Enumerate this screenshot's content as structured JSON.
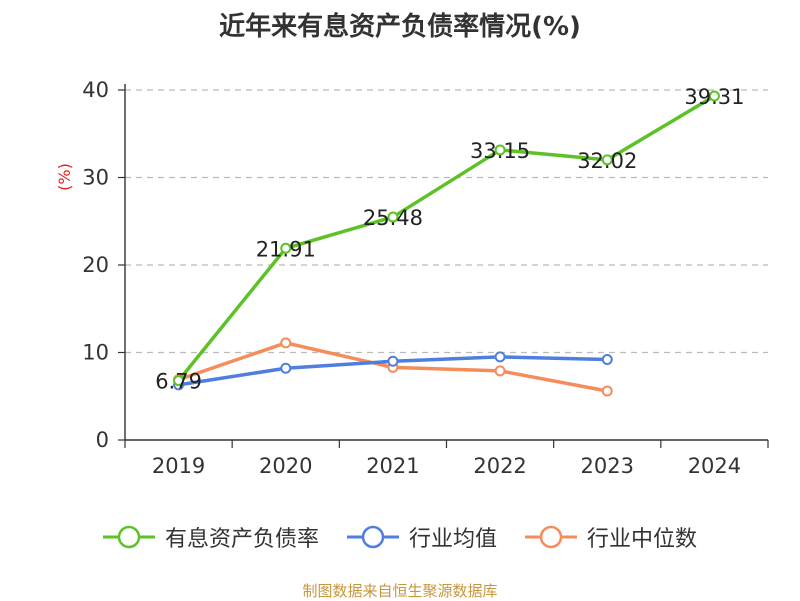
{
  "chart_data": {
    "type": "line",
    "title": "近年来有息资产负债率情况(%)",
    "ylabel": "(%)",
    "categories": [
      "2019",
      "2020",
      "2021",
      "2022",
      "2023",
      "2024"
    ],
    "y_ticks": [
      "0",
      "10",
      "20",
      "30",
      "40"
    ],
    "ylim": [
      0,
      40
    ],
    "grid": "horizontal dashed",
    "legend_position": "bottom",
    "series": [
      {
        "name": "有息资产负债率",
        "color": "#5cc225",
        "values": [
          6.79,
          21.91,
          25.48,
          33.15,
          32.02,
          39.31
        ],
        "labels": [
          "6.79",
          "21.91",
          "25.48",
          "33.15",
          "32.02",
          "39.31"
        ]
      },
      {
        "name": "行业均值",
        "color": "#4f7ee0",
        "values": [
          6.3,
          8.2,
          9.0,
          9.5,
          9.2,
          null
        ]
      },
      {
        "name": "行业中位数",
        "color": "#f58c5a",
        "values": [
          6.9,
          11.1,
          8.3,
          7.9,
          5.6,
          null
        ]
      }
    ]
  },
  "source_note": "制图数据来自恒生聚源数据库",
  "colors": {
    "title": "#333333",
    "ylabel": "#e0201c",
    "axis": "#333333",
    "grid": "#bbbbbb",
    "source": "#c8963c"
  }
}
